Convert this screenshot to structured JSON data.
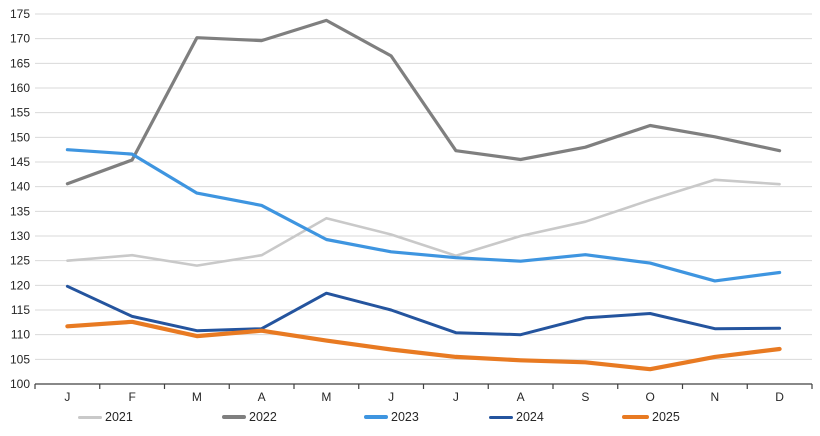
{
  "chart_data": {
    "type": "line",
    "title": "",
    "xlabel": "",
    "ylabel": "",
    "categories": [
      "J",
      "F",
      "M",
      "A",
      "M",
      "J",
      "J",
      "A",
      "S",
      "O",
      "N",
      "D"
    ],
    "ylim": [
      100,
      175
    ],
    "ytick_step": 5,
    "ytick_labels": [
      "100",
      "105",
      "110",
      "115",
      "120",
      "125",
      "130",
      "135",
      "140",
      "145",
      "150",
      "155",
      "160",
      "165",
      "170",
      "175"
    ],
    "grid": true,
    "legend_position": "bottom",
    "colors": {
      "gridline": "#d9d9d9",
      "axis": "#404040",
      "text": "#262626",
      "background": "#ffffff"
    },
    "series": [
      {
        "name": "2021",
        "color": "#c9c9c9",
        "stroke_width": 2.6,
        "values": [
          125.0,
          126.1,
          124.0,
          126.1,
          133.6,
          130.3,
          126.0,
          130.0,
          132.9,
          137.3,
          141.4,
          140.5
        ]
      },
      {
        "name": "2022",
        "color": "#7f7f7f",
        "stroke_width": 3.2,
        "values": [
          140.6,
          145.4,
          170.2,
          169.6,
          173.7,
          166.5,
          147.3,
          145.5,
          148.0,
          152.4,
          150.1,
          147.3
        ]
      },
      {
        "name": "2023",
        "color": "#3e95e0",
        "stroke_width": 3.2,
        "values": [
          147.5,
          146.6,
          138.7,
          136.2,
          129.3,
          126.8,
          125.6,
          124.9,
          126.2,
          124.5,
          120.9,
          122.6
        ]
      },
      {
        "name": "2024",
        "color": "#24549e",
        "stroke_width": 3.0,
        "values": [
          119.8,
          113.7,
          110.8,
          111.2,
          118.4,
          115.0,
          110.4,
          110.0,
          113.4,
          114.3,
          111.2,
          111.3
        ]
      },
      {
        "name": "2025",
        "color": "#e87a22",
        "stroke_width": 4.2,
        "values": [
          111.7,
          112.6,
          109.7,
          110.8,
          108.8,
          107.0,
          105.5,
          104.8,
          104.4,
          103.0,
          105.5,
          107.1
        ]
      }
    ]
  }
}
